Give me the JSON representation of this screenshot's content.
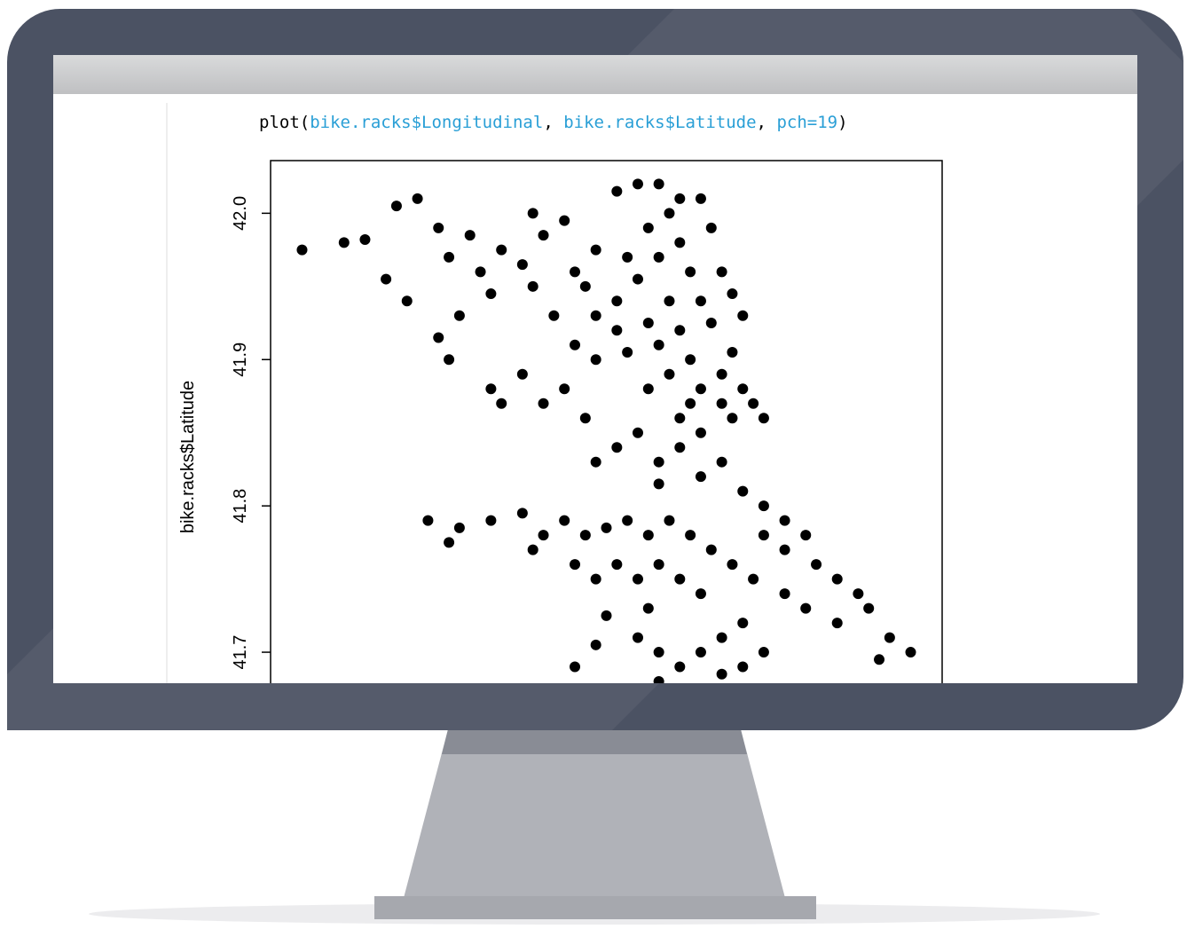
{
  "code_parts": [
    "plot(",
    "bike.racks$Longitudinal",
    ", ",
    "bike.racks$Latitude",
    ", ",
    "pch=19",
    ")"
  ],
  "chart_data": {
    "type": "scatter",
    "ylabel": "bike.racks$Latitude",
    "color": "#000000",
    "xlim": [
      -87.845,
      -87.525
    ],
    "ylim": [
      41.64,
      42.036
    ],
    "yticks": [
      41.7,
      41.8,
      41.9,
      {
        "value": 42,
        "label": "42.0"
      }
    ],
    "x": [
      -87.83,
      -87.81,
      -87.8,
      -87.79,
      -87.78,
      -87.785,
      -87.775,
      -87.765,
      -87.76,
      -87.75,
      -87.745,
      -87.74,
      -87.755,
      -87.765,
      -87.76,
      -87.735,
      -87.725,
      -87.72,
      -87.715,
      -87.71,
      -87.7,
      -87.72,
      -87.705,
      -87.74,
      -87.735,
      -87.725,
      -87.715,
      -87.705,
      -87.7,
      -87.69,
      -87.695,
      -87.68,
      -87.69,
      -87.67,
      -87.66,
      -87.65,
      -87.68,
      -87.67,
      -87.66,
      -87.655,
      -87.665,
      -87.675,
      -87.69,
      -87.695,
      -87.68,
      -87.67,
      -87.66,
      -87.65,
      -87.645,
      -87.655,
      -87.665,
      -87.68,
      -87.69,
      -87.675,
      -87.66,
      -87.65,
      -87.64,
      -87.635,
      -87.645,
      -87.655,
      -87.665,
      -87.64,
      -87.63,
      -87.625,
      -87.62,
      -87.615,
      -87.63,
      -87.645,
      -87.625,
      -87.61,
      -87.635,
      -87.64,
      -87.65,
      -87.63,
      -87.625,
      -87.62,
      -87.64,
      -87.65,
      -87.66,
      -87.64,
      -87.63,
      -87.62,
      -87.61,
      -87.6,
      -87.59,
      -87.6,
      -87.61,
      -87.585,
      -87.575,
      -87.565,
      -87.56,
      -87.55,
      -87.54,
      -87.555,
      -87.575,
      -87.59,
      -87.6,
      -87.615,
      -87.625,
      -87.635,
      -87.645,
      -87.655,
      -87.665,
      -87.675,
      -87.685,
      -87.695,
      -87.705,
      -87.715,
      -87.725,
      -87.74,
      -87.755,
      -87.77,
      -87.76,
      -87.72,
      -87.7,
      -87.69,
      -87.68,
      -87.67,
      -87.66,
      -87.65,
      -87.64,
      -87.665,
      -87.67,
      -87.66,
      -87.65,
      -87.64,
      -87.63,
      -87.62,
      -87.61,
      -87.66,
      -87.63,
      -87.69,
      -87.7,
      -87.685,
      -87.62
    ],
    "y": [
      41.975,
      41.98,
      41.982,
      41.955,
      41.94,
      42.005,
      42.01,
      41.99,
      41.97,
      41.985,
      41.96,
      41.945,
      41.93,
      41.915,
      41.9,
      41.975,
      41.965,
      41.95,
      41.985,
      41.93,
      41.96,
      42.0,
      41.995,
      41.88,
      41.87,
      41.89,
      41.87,
      41.88,
      41.91,
      41.9,
      41.86,
      41.84,
      41.83,
      41.85,
      41.83,
      41.86,
      42.015,
      42.02,
      42.02,
      42.0,
      41.99,
      41.97,
      41.975,
      41.95,
      41.94,
      41.955,
      41.97,
      41.98,
      41.96,
      41.94,
      41.925,
      41.92,
      41.93,
      41.905,
      41.91,
      41.92,
      41.94,
      41.925,
      41.9,
      41.89,
      41.88,
      41.88,
      41.89,
      41.905,
      41.88,
      41.87,
      41.87,
      41.87,
      41.86,
      41.86,
      41.99,
      42.01,
      42.01,
      41.96,
      41.945,
      41.93,
      41.85,
      41.84,
      41.815,
      41.82,
      41.83,
      41.81,
      41.8,
      41.79,
      41.78,
      41.77,
      41.78,
      41.76,
      41.75,
      41.74,
      41.73,
      41.71,
      41.7,
      41.695,
      41.72,
      41.73,
      41.74,
      41.75,
      41.76,
      41.77,
      41.78,
      41.79,
      41.78,
      41.79,
      41.785,
      41.78,
      41.79,
      41.78,
      41.795,
      41.79,
      41.785,
      41.79,
      41.775,
      41.77,
      41.76,
      41.75,
      41.76,
      41.75,
      41.76,
      41.75,
      41.74,
      41.73,
      41.71,
      41.7,
      41.69,
      41.7,
      41.71,
      41.72,
      41.7,
      41.68,
      41.685,
      41.705,
      41.69,
      41.725,
      41.69
    ]
  }
}
